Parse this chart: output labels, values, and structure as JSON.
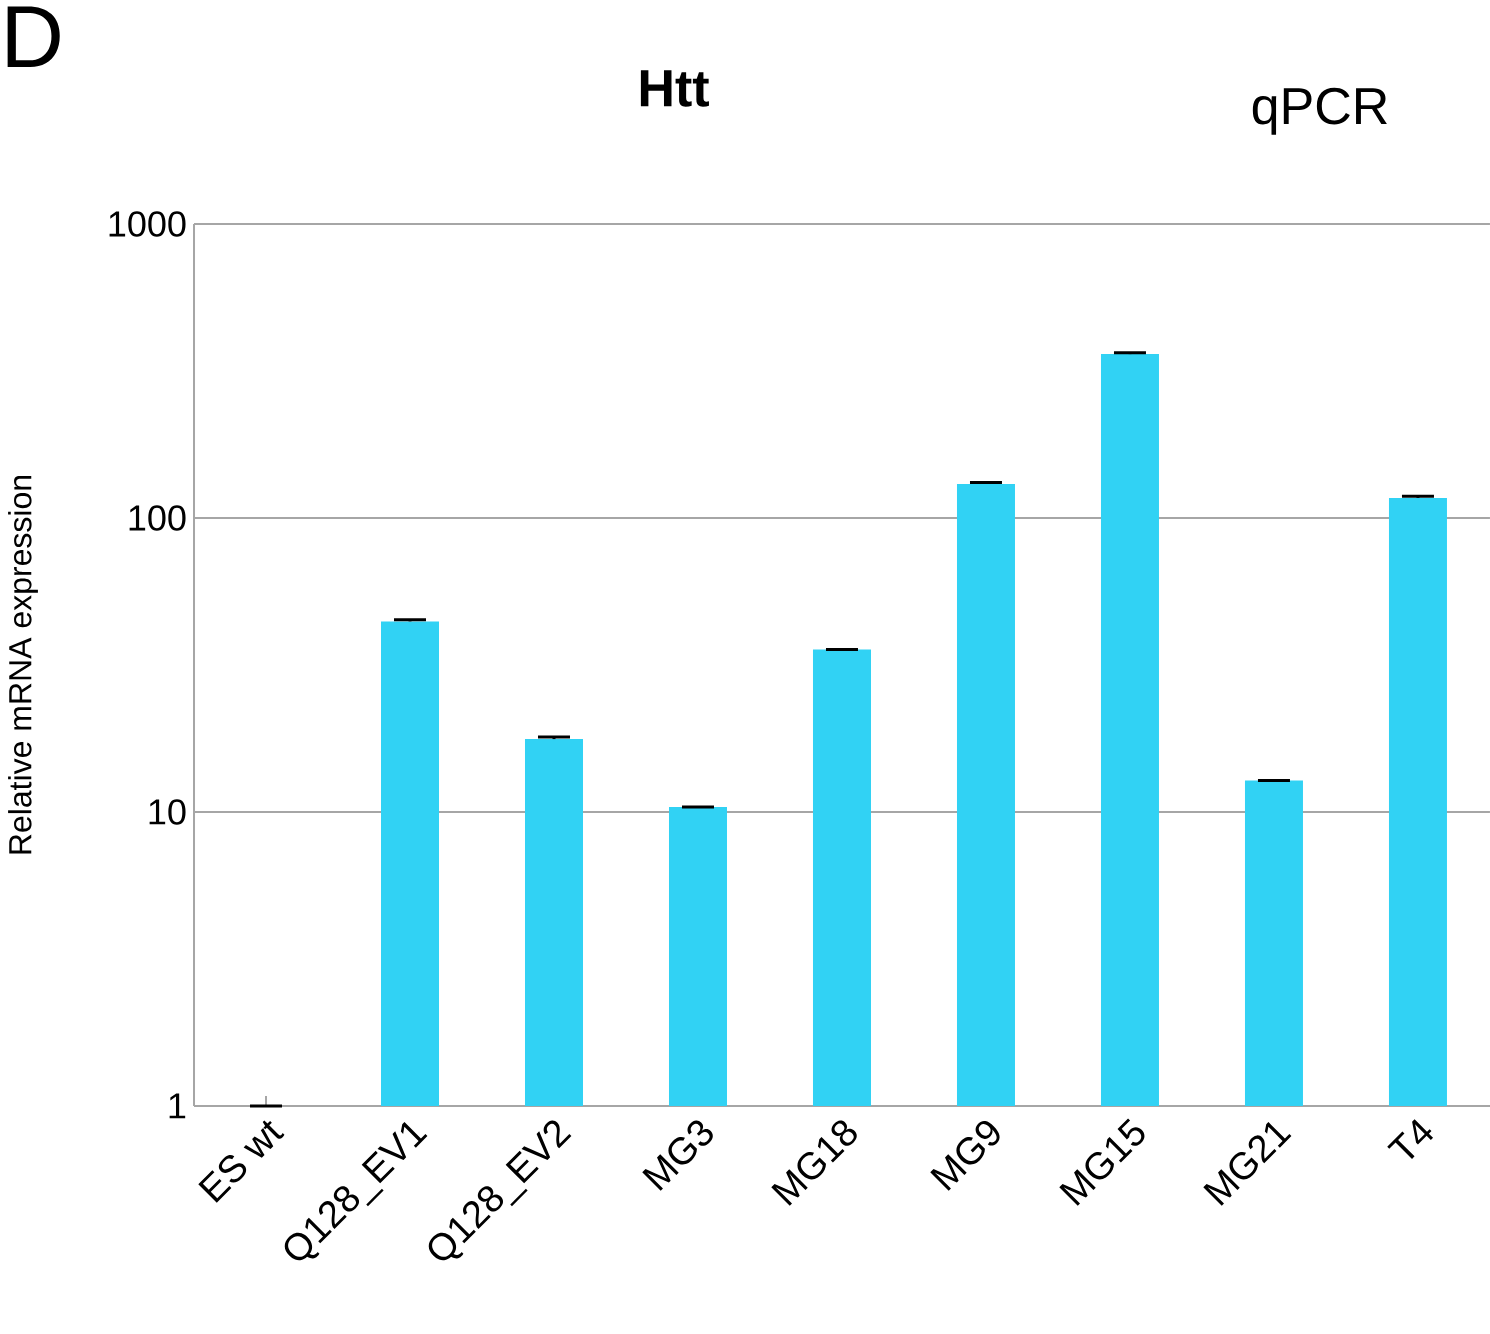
{
  "chart_data": {
    "type": "bar",
    "title": "Htt",
    "ylabel": "Relative mRNA expression",
    "annotations": [
      "D",
      "qPCR"
    ],
    "categories": [
      "ES wt",
      "Q128_EV1",
      "Q128_EV2",
      "MG3",
      "MG18",
      "MG9",
      "MG15",
      "MG21",
      "T4"
    ],
    "values": [
      1,
      44.5,
      17.7,
      10.4,
      35.7,
      130.6,
      361,
      12.8,
      117
    ],
    "errors": [
      null,
      0.6,
      0.3,
      null,
      null,
      1.5,
      4,
      null,
      1.5
    ],
    "color": "#31d2f4",
    "log": "y",
    "ylim": [
      1,
      1000
    ],
    "yticks": [
      1,
      10,
      100,
      1000
    ],
    "grid": "y"
  }
}
